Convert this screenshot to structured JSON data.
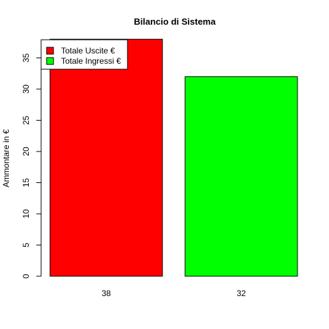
{
  "chart_data": {
    "type": "bar",
    "title": "Bilancio di Sistema",
    "xlabel": "",
    "ylabel": "Ammontare in €",
    "categories": [
      "38",
      "32"
    ],
    "values": [
      38,
      32
    ],
    "bar_colors": [
      "#ff0000",
      "#00ff00"
    ],
    "ylim": [
      0,
      38
    ],
    "yticks": [
      0,
      5,
      10,
      15,
      20,
      25,
      30,
      35
    ],
    "grid": false,
    "legend": {
      "placement": "top-left",
      "entries": [
        {
          "label": "Totale Uscite €",
          "color": "#ff0000"
        },
        {
          "label": "Totale Ingressi €",
          "color": "#00ff00"
        }
      ]
    }
  }
}
